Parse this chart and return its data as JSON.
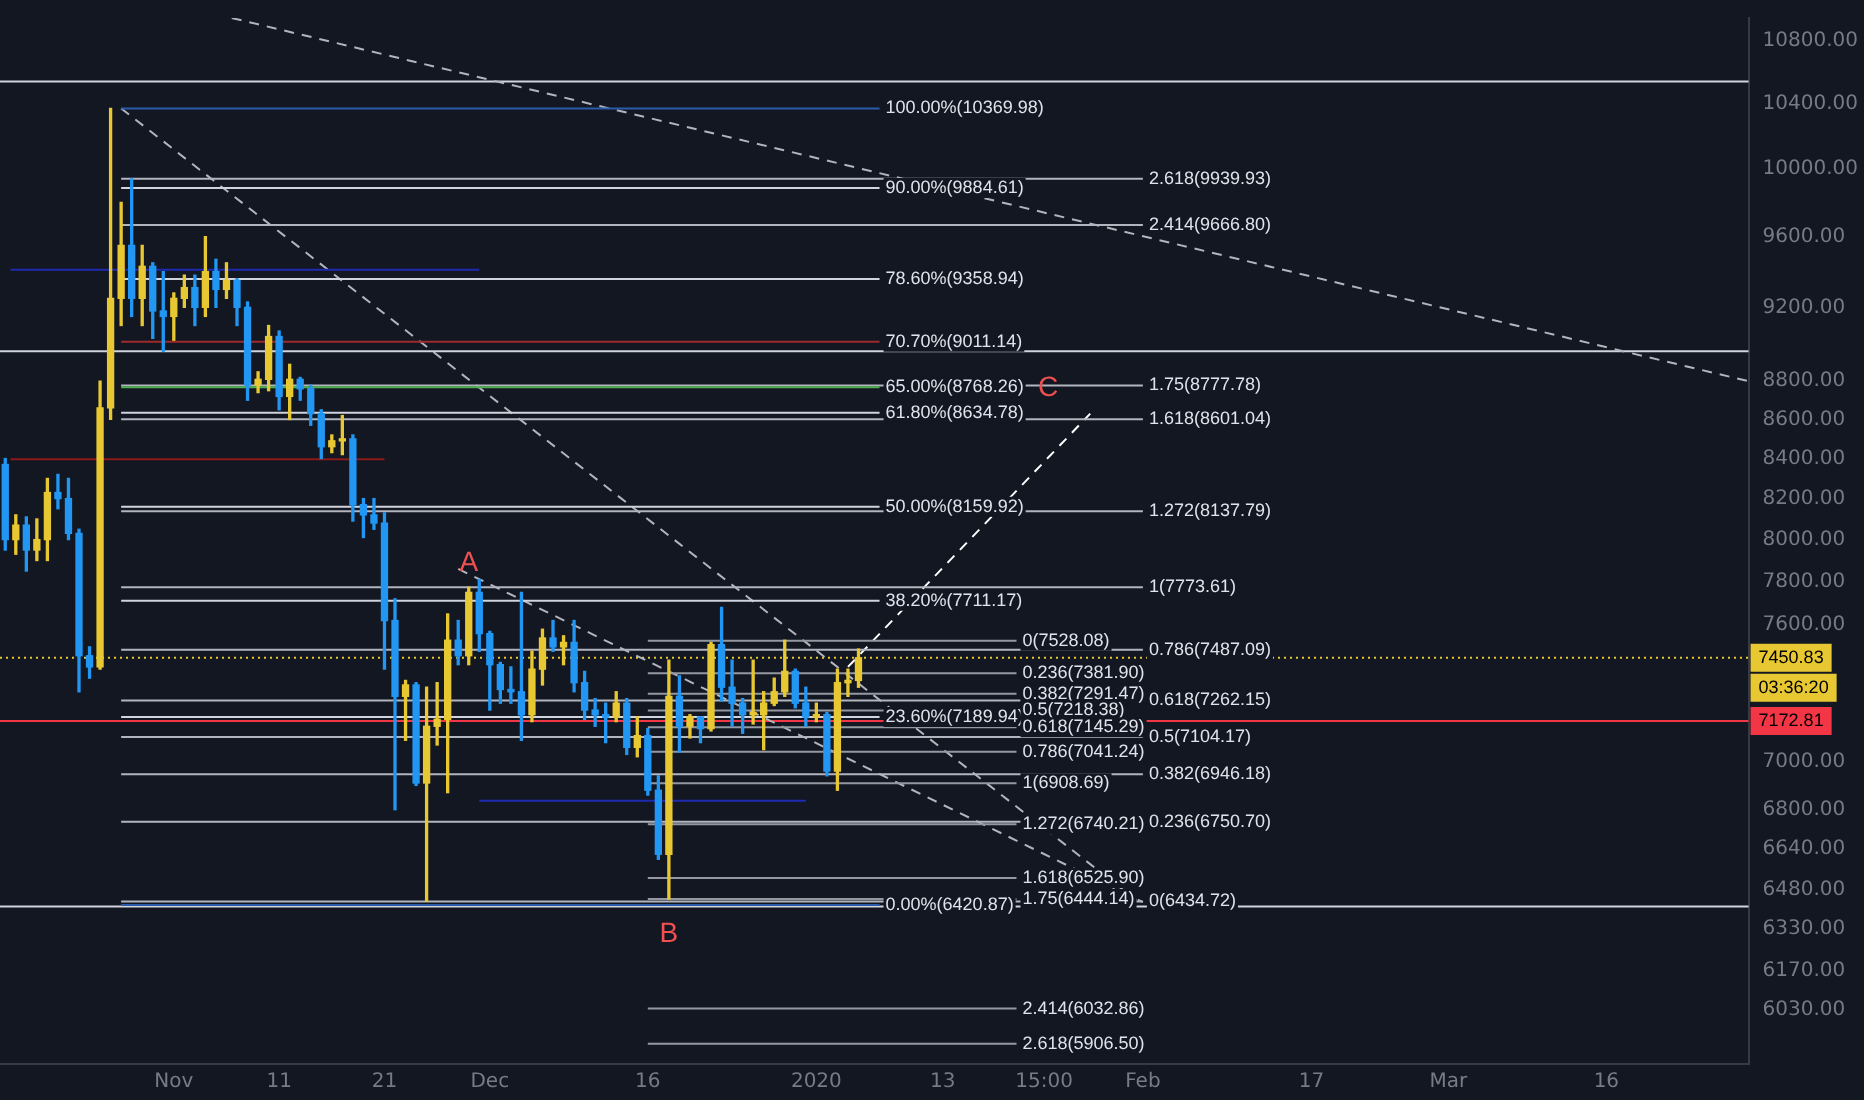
{
  "chart_data": {
    "type": "candlestick",
    "x": [
      "2019-10-16",
      "2019-10-17",
      "2019-10-18",
      "2019-10-19",
      "2019-10-20",
      "2019-10-21",
      "2019-10-22",
      "2019-10-23",
      "2019-10-24",
      "2019-10-25",
      "2019-10-26",
      "2019-10-27",
      "2019-10-28",
      "2019-10-29",
      "2019-10-30",
      "2019-10-31",
      "2019-11-01",
      "2019-11-02",
      "2019-11-03",
      "2019-11-04",
      "2019-11-05",
      "2019-11-06",
      "2019-11-07",
      "2019-11-08",
      "2019-11-09",
      "2019-11-10",
      "2019-11-11",
      "2019-11-12",
      "2019-11-13",
      "2019-11-14",
      "2019-11-15",
      "2019-11-16",
      "2019-11-17",
      "2019-11-18",
      "2019-11-19",
      "2019-11-20",
      "2019-11-21",
      "2019-11-22",
      "2019-11-23",
      "2019-11-24",
      "2019-11-25",
      "2019-11-26",
      "2019-11-27",
      "2019-11-28",
      "2019-11-29",
      "2019-11-30",
      "2019-12-01",
      "2019-12-02",
      "2019-12-03",
      "2019-12-04",
      "2019-12-05",
      "2019-12-06",
      "2019-12-07",
      "2019-12-08",
      "2019-12-09",
      "2019-12-10",
      "2019-12-11",
      "2019-12-12",
      "2019-12-13",
      "2019-12-14",
      "2019-12-15",
      "2019-12-16",
      "2019-12-17",
      "2019-12-18",
      "2019-12-19",
      "2019-12-20",
      "2019-12-21",
      "2019-12-22",
      "2019-12-23",
      "2019-12-24",
      "2019-12-25",
      "2019-12-26",
      "2019-12-27",
      "2019-12-28",
      "2019-12-29",
      "2019-12-30",
      "2019-12-31",
      "2020-01-01",
      "2020-01-02",
      "2020-01-03",
      "2020-01-04",
      "2020-01-05"
    ],
    "ohlc": [
      [
        8370,
        8400,
        7950,
        8000
      ],
      [
        8000,
        8120,
        7930,
        8070
      ],
      [
        8070,
        8110,
        7850,
        7950
      ],
      [
        7950,
        8100,
        7900,
        8000
      ],
      [
        8000,
        8300,
        7900,
        8230
      ],
      [
        8230,
        8320,
        8150,
        8200
      ],
      [
        8200,
        8300,
        8000,
        8030
      ],
      [
        8030,
        8050,
        7300,
        7460
      ],
      [
        7460,
        7500,
        7360,
        7410
      ],
      [
        7410,
        8800,
        7400,
        8660
      ],
      [
        8660,
        10370,
        8600,
        9250
      ],
      [
        9250,
        9800,
        9100,
        9550
      ],
      [
        9550,
        9940,
        9150,
        9250
      ],
      [
        9250,
        9550,
        9100,
        9430
      ],
      [
        9430,
        9450,
        9030,
        9180
      ],
      [
        9180,
        9400,
        8960,
        9150
      ],
      [
        9150,
        9280,
        9020,
        9250
      ],
      [
        9250,
        9380,
        9200,
        9310
      ],
      [
        9310,
        9380,
        9100,
        9200
      ],
      [
        9200,
        9600,
        9150,
        9400
      ],
      [
        9400,
        9470,
        9200,
        9300
      ],
      [
        9300,
        9450,
        9250,
        9350
      ],
      [
        9350,
        9360,
        9100,
        9200
      ],
      [
        9200,
        9230,
        8700,
        8780
      ],
      [
        8780,
        8850,
        8740,
        8810
      ],
      [
        8810,
        9100,
        8750,
        9040
      ],
      [
        9040,
        9070,
        8650,
        8720
      ],
      [
        8720,
        8890,
        8600,
        8810
      ],
      [
        8810,
        8820,
        8700,
        8760
      ],
      [
        8760,
        8780,
        8570,
        8630
      ],
      [
        8630,
        8650,
        8400,
        8460
      ],
      [
        8460,
        8520,
        8430,
        8490
      ],
      [
        8490,
        8620,
        8420,
        8500
      ],
      [
        8500,
        8520,
        8090,
        8170
      ],
      [
        8170,
        8200,
        8010,
        8120
      ],
      [
        8120,
        8200,
        8050,
        8080
      ],
      [
        8080,
        8130,
        7400,
        7620
      ],
      [
        7620,
        7720,
        6800,
        7280
      ],
      [
        7280,
        7350,
        7090,
        7330
      ],
      [
        7330,
        7340,
        6900,
        6910
      ],
      [
        6910,
        7320,
        6435,
        7150
      ],
      [
        7150,
        7340,
        7070,
        7180
      ],
      [
        7180,
        7650,
        6870,
        7530
      ],
      [
        7530,
        7620,
        7420,
        7460
      ],
      [
        7460,
        7774,
        7420,
        7750
      ],
      [
        7750,
        7810,
        7480,
        7560
      ],
      [
        7560,
        7570,
        7220,
        7420
      ],
      [
        7420,
        7430,
        7250,
        7310
      ],
      [
        7310,
        7410,
        7250,
        7300
      ],
      [
        7300,
        7750,
        7090,
        7200
      ],
      [
        7200,
        7480,
        7170,
        7400
      ],
      [
        7400,
        7580,
        7330,
        7540
      ],
      [
        7540,
        7620,
        7480,
        7500
      ],
      [
        7500,
        7550,
        7420,
        7520
      ],
      [
        7520,
        7620,
        7300,
        7340
      ],
      [
        7340,
        7390,
        7180,
        7220
      ],
      [
        7220,
        7270,
        7150,
        7200
      ],
      [
        7200,
        7250,
        7080,
        7190
      ],
      [
        7190,
        7300,
        7170,
        7250
      ],
      [
        7250,
        7270,
        7030,
        7060
      ],
      [
        7060,
        7190,
        7020,
        7110
      ],
      [
        7110,
        7140,
        6860,
        6880
      ],
      [
        6880,
        6940,
        6600,
        6620
      ],
      [
        6620,
        7440,
        6444,
        7280
      ],
      [
        7280,
        7370,
        7040,
        7150
      ],
      [
        7150,
        7200,
        7100,
        7190
      ],
      [
        7190,
        7190,
        7080,
        7140
      ],
      [
        7140,
        7520,
        7130,
        7510
      ],
      [
        7510,
        7680,
        7260,
        7320
      ],
      [
        7320,
        7440,
        7150,
        7250
      ],
      [
        7250,
        7270,
        7120,
        7200
      ],
      [
        7200,
        7440,
        7160,
        7200
      ],
      [
        7200,
        7300,
        7050,
        7250
      ],
      [
        7250,
        7360,
        7240,
        7300
      ],
      [
        7300,
        7530,
        7280,
        7390
      ],
      [
        7390,
        7400,
        7230,
        7250
      ],
      [
        7250,
        7320,
        7150,
        7190
      ],
      [
        7190,
        7250,
        7170,
        7200
      ],
      [
        7200,
        7210,
        6940,
        6960
      ],
      [
        6960,
        7400,
        6880,
        7340
      ],
      [
        7340,
        7400,
        7280,
        7350
      ],
      [
        7350,
        7490,
        7320,
        7451
      ]
    ],
    "colors": [
      "#2196f3",
      "#e8c832",
      "#2196f3",
      "#e8c832",
      "#e8c832",
      "#2196f3",
      "#2196f3",
      "#2196f3",
      "#2196f3",
      "#e8c832",
      "#e8c832",
      "#e8c832",
      "#2196f3",
      "#e8c832",
      "#2196f3",
      "#2196f3",
      "#e8c832",
      "#e8c832",
      "#2196f3",
      "#e8c832",
      "#2196f3",
      "#e8c832",
      "#2196f3",
      "#2196f3",
      "#e8c832",
      "#e8c832",
      "#2196f3",
      "#e8c832",
      "#2196f3",
      "#2196f3",
      "#2196f3",
      "#e8c832",
      "#e8c832",
      "#2196f3",
      "#2196f3",
      "#2196f3",
      "#2196f3",
      "#2196f3",
      "#e8c832",
      "#2196f3",
      "#e8c832",
      "#e8c832",
      "#e8c832",
      "#2196f3",
      "#e8c832",
      "#2196f3",
      "#2196f3",
      "#2196f3",
      "#2196f3",
      "#2196f3",
      "#e8c832",
      "#e8c832",
      "#2196f3",
      "#e8c832",
      "#2196f3",
      "#2196f3",
      "#2196f3",
      "#2196f3",
      "#e8c832",
      "#2196f3",
      "#e8c832",
      "#2196f3",
      "#2196f3",
      "#e8c832",
      "#2196f3",
      "#e8c832",
      "#2196f3",
      "#e8c832",
      "#2196f3",
      "#2196f3",
      "#2196f3",
      "#e8c832",
      "#e8c832",
      "#e8c832",
      "#e8c832",
      "#2196f3",
      "#2196f3",
      "#e8c832",
      "#2196f3",
      "#e8c832",
      "#e8c832",
      "#e8c832"
    ],
    "series": [
      {
        "type": "line",
        "x": [
          "2019-10-27",
          "2020-01-07"
        ],
        "values": [
          10369.98,
          10369.98
        ],
        "color": "#2a5caa"
      },
      {
        "type": "line",
        "x": [
          "2019-10-27",
          "2020-01-07"
        ],
        "values": [
          9884.61,
          9884.61
        ],
        "color": "#d1d4dc"
      },
      {
        "type": "line",
        "x": [
          "2019-10-27",
          "2020-01-07"
        ],
        "values": [
          9358.94,
          9358.94
        ],
        "color": "#d1d4dc"
      },
      {
        "type": "line",
        "x": [
          "2019-10-27",
          "2020-01-07"
        ],
        "values": [
          9011.14,
          9011.14
        ],
        "color": "#9c2b2b"
      },
      {
        "type": "line",
        "x": [
          "2019-10-27",
          "2020-01-07"
        ],
        "values": [
          8768.26,
          8768.26
        ],
        "color": "#4caf50"
      },
      {
        "type": "line",
        "x": [
          "2019-10-27",
          "2020-01-07"
        ],
        "values": [
          8634.78,
          8634.78
        ],
        "color": "#d1d4dc"
      },
      {
        "type": "line",
        "x": [
          "2019-10-27",
          "2020-01-07"
        ],
        "values": [
          8159.92,
          8159.92
        ],
        "color": "#d1d4dc"
      },
      {
        "type": "line",
        "x": [
          "2019-10-27",
          "2020-01-07"
        ],
        "values": [
          7711.17,
          7711.17
        ],
        "color": "#d1d4dc"
      },
      {
        "type": "line",
        "x": [
          "2019-10-27",
          "2020-01-07"
        ],
        "values": [
          7189.94,
          7189.94
        ],
        "color": "#d1d4dc"
      },
      {
        "type": "line",
        "x": [
          "2019-10-27",
          "2020-01-07"
        ],
        "values": [
          6420.87,
          6420.87
        ],
        "color": "#2a5caa"
      },
      {
        "type": "line",
        "x": [
          "2019-10-27",
          "2020-02-01"
        ],
        "values": [
          9939.93,
          9939.93
        ],
        "color": "#b2b5be"
      },
      {
        "type": "line",
        "x": [
          "2019-10-27",
          "2020-02-01"
        ],
        "values": [
          9666.8,
          9666.8
        ],
        "color": "#b2b5be"
      },
      {
        "type": "line",
        "x": [
          "2019-10-27",
          "2020-02-01"
        ],
        "values": [
          8777.78,
          8777.78
        ],
        "color": "#b2b5be"
      },
      {
        "type": "line",
        "x": [
          "2019-10-27",
          "2020-02-01"
        ],
        "values": [
          8601.04,
          8601.04
        ],
        "color": "#b2b5be"
      },
      {
        "type": "line",
        "x": [
          "2019-10-27",
          "2020-02-01"
        ],
        "values": [
          8137.79,
          8137.79
        ],
        "color": "#b2b5be"
      },
      {
        "type": "line",
        "x": [
          "2019-10-27",
          "2020-02-01"
        ],
        "values": [
          7773.61,
          7773.61
        ],
        "color": "#b2b5be"
      },
      {
        "type": "line",
        "x": [
          "2019-10-27",
          "2020-02-01"
        ],
        "values": [
          7487.09,
          7487.09
        ],
        "color": "#b2b5be"
      },
      {
        "type": "line",
        "x": [
          "2019-10-27",
          "2020-02-01"
        ],
        "values": [
          7262.15,
          7262.15
        ],
        "color": "#b2b5be"
      },
      {
        "type": "line",
        "x": [
          "2019-10-27",
          "2020-02-01"
        ],
        "values": [
          7104.17,
          7104.17
        ],
        "color": "#b2b5be"
      },
      {
        "type": "line",
        "x": [
          "2019-10-27",
          "2020-02-01"
        ],
        "values": [
          6946.18,
          6946.18
        ],
        "color": "#b2b5be"
      },
      {
        "type": "line",
        "x": [
          "2019-10-27",
          "2020-02-01"
        ],
        "values": [
          6750.7,
          6750.7
        ],
        "color": "#b2b5be"
      },
      {
        "type": "line",
        "x": [
          "2019-10-27",
          "2020-02-01"
        ],
        "values": [
          6434.72,
          6434.72
        ],
        "color": "#b2b5be"
      },
      {
        "type": "line",
        "x": [
          "2019-12-16",
          "2020-01-20"
        ],
        "values": [
          7528.08,
          7528.08
        ],
        "color": "#9598a1"
      },
      {
        "type": "line",
        "x": [
          "2019-12-16",
          "2020-01-20"
        ],
        "values": [
          7381.9,
          7381.9
        ],
        "color": "#9598a1"
      },
      {
        "type": "line",
        "x": [
          "2019-12-16",
          "2020-01-20"
        ],
        "values": [
          7291.47,
          7291.47
        ],
        "color": "#9598a1"
      },
      {
        "type": "line",
        "x": [
          "2019-12-16",
          "2020-01-20"
        ],
        "values": [
          7218.38,
          7218.38
        ],
        "color": "#9598a1"
      },
      {
        "type": "line",
        "x": [
          "2019-12-16",
          "2020-01-20"
        ],
        "values": [
          7145.29,
          7145.29
        ],
        "color": "#9598a1"
      },
      {
        "type": "line",
        "x": [
          "2019-12-16",
          "2020-01-20"
        ],
        "values": [
          7041.24,
          7041.24
        ],
        "color": "#9598a1"
      },
      {
        "type": "line",
        "x": [
          "2019-12-16",
          "2020-01-20"
        ],
        "values": [
          6908.69,
          6908.69
        ],
        "color": "#9598a1"
      },
      {
        "type": "line",
        "x": [
          "2019-12-16",
          "2020-01-20"
        ],
        "values": [
          6740.21,
          6740.21
        ],
        "color": "#9598a1"
      },
      {
        "type": "line",
        "x": [
          "2019-12-16",
          "2020-01-20"
        ],
        "values": [
          6525.9,
          6525.9
        ],
        "color": "#9598a1"
      },
      {
        "type": "line",
        "x": [
          "2019-12-16",
          "2020-01-20"
        ],
        "values": [
          6444.14,
          6444.14
        ],
        "color": "#9598a1"
      },
      {
        "type": "line",
        "x": [
          "2019-12-16",
          "2020-01-20"
        ],
        "values": [
          6032.86,
          6032.86
        ],
        "color": "#9598a1"
      },
      {
        "type": "line",
        "x": [
          "2019-12-16",
          "2020-01-20"
        ],
        "values": [
          5906.5,
          5906.5
        ],
        "color": "#9598a1"
      },
      {
        "type": "line",
        "x": [
          "2019-10-16T12:00",
          "2019-11-30"
        ],
        "values": [
          9411,
          9411
        ],
        "color": "#1e2bb0"
      },
      {
        "type": "line",
        "x": [
          "2019-10-16T12:00",
          "2019-11-21"
        ],
        "values": [
          8397,
          8397
        ],
        "color": "#8b1a1a"
      },
      {
        "type": "line",
        "x": [
          "2019-11-30",
          "2019-12-31"
        ],
        "values": [
          6837,
          6837
        ],
        "color": "#1e2bb0"
      },
      {
        "type": "line",
        "x": [
          "2019-11-06T12:00",
          "2020-03-29T12:00"
        ],
        "values": [
          10950,
          8800
        ],
        "color": "#b2b5be",
        "line_style": "dashed"
      },
      {
        "type": "line",
        "x": [
          "2019-10-27",
          "2020-02-01"
        ],
        "values": [
          10370,
          6420
        ],
        "color": "#b2b5be",
        "line_style": "dashed"
      },
      {
        "type": "line",
        "x": [
          "2019-11-28",
          "2020-02-01"
        ],
        "values": [
          7860,
          6432
        ],
        "color": "#b2b5be",
        "line_style": "dashed"
      },
      {
        "type": "line",
        "x": [
          "2020-01-04",
          "2020-01-27"
        ],
        "values": [
          7410,
          8630
        ],
        "color": "#ffffff",
        "line_style": "dashed"
      }
    ],
    "annotations": [
      {
        "text": "100.00%(10369.98)",
        "x": "2020-01-07",
        "y": 10369.98
      },
      {
        "text": "90.00%(9884.61)",
        "x": "2020-01-07",
        "y": 9884.61
      },
      {
        "text": "78.60%(9358.94)",
        "x": "2020-01-07",
        "y": 9358.94
      },
      {
        "text": "70.70%(9011.14)",
        "x": "2020-01-07",
        "y": 9011.14
      },
      {
        "text": "65.00%(8768.26)",
        "x": "2020-01-07",
        "y": 8768.26
      },
      {
        "text": "61.80%(8634.78)",
        "x": "2020-01-07",
        "y": 8634.78
      },
      {
        "text": "50.00%(8159.92)",
        "x": "2020-01-07",
        "y": 8159.92
      },
      {
        "text": "38.20%(7711.17)",
        "x": "2020-01-07",
        "y": 7711.17
      },
      {
        "text": "23.60%(7189.94)",
        "x": "2020-01-07",
        "y": 7189.94
      },
      {
        "text": "0.00%(6420.87)",
        "x": "2020-01-07",
        "y": 6420.87
      },
      {
        "text": "2.618(9939.93)",
        "x": "2020-02-01",
        "y": 9939.93
      },
      {
        "text": "2.414(9666.80)",
        "x": "2020-02-01",
        "y": 9666.8
      },
      {
        "text": "1.75(8777.78)",
        "x": "2020-02-01",
        "y": 8777.78
      },
      {
        "text": "1.618(8601.04)",
        "x": "2020-02-01",
        "y": 8601.04
      },
      {
        "text": "1.272(8137.79)",
        "x": "2020-02-01",
        "y": 8137.79
      },
      {
        "text": "1(7773.61)",
        "x": "2020-02-01",
        "y": 7773.61
      },
      {
        "text": "0.786(7487.09)",
        "x": "2020-02-01",
        "y": 7487.09
      },
      {
        "text": "0.618(7262.15)",
        "x": "2020-02-01",
        "y": 7262.15
      },
      {
        "text": "0.5(7104.17)",
        "x": "2020-02-01",
        "y": 7104.17
      },
      {
        "text": "0.382(6946.18)",
        "x": "2020-02-01",
        "y": 6946.18
      },
      {
        "text": "0.236(6750.70)",
        "x": "2020-02-01",
        "y": 6750.7
      },
      {
        "text": "0(6434.72)",
        "x": "2020-02-01",
        "y": 6434.72
      },
      {
        "text": "0(7528.08)",
        "x": "2020-01-20",
        "y": 7528.08
      },
      {
        "text": "0.236(7381.90)",
        "x": "2020-01-20",
        "y": 7381.9
      },
      {
        "text": "0.382(7291.47)",
        "x": "2020-01-20",
        "y": 7291.47
      },
      {
        "text": "0.5(7218.38)",
        "x": "2020-01-20",
        "y": 7218.38
      },
      {
        "text": "0.618(7145.29)",
        "x": "2020-01-20",
        "y": 7145.29
      },
      {
        "text": "0.786(7041.24)",
        "x": "2020-01-20",
        "y": 7041.24
      },
      {
        "text": "1(6908.69)",
        "x": "2020-01-20",
        "y": 6908.69
      },
      {
        "text": "1.272(6740.21)",
        "x": "2020-01-20",
        "y": 6740.21
      },
      {
        "text": "1.618(6525.90)",
        "x": "2020-01-20",
        "y": 6525.9
      },
      {
        "text": "1.75(6444.14)",
        "x": "2020-01-20",
        "y": 6444.14
      },
      {
        "text": "2.414(6032.86)",
        "x": "2020-01-20",
        "y": 6032.86
      },
      {
        "text": "2.618(5906.50)",
        "x": "2020-01-20",
        "y": 5906.5
      },
      {
        "text": "A",
        "x": "2019-11-29",
        "y": 7774
      },
      {
        "text": "B",
        "x": "2019-12-18",
        "y": 6415
      },
      {
        "text": "C",
        "x": "2020-01-23",
        "y": 8634.78
      },
      "03:36:20"
    ],
    "ref_lines": [
      {
        "axis": "y",
        "value": 7450.83,
        "label": "7450.83",
        "color": "#e8c832",
        "line_style": "dotted"
      },
      {
        "axis": "y",
        "value": 7172.81,
        "label": "7172.81",
        "color": "#f23645",
        "line_style": "solid"
      },
      {
        "axis": "y",
        "value": 10540,
        "color": "#d1d4dc",
        "line_style": "solid"
      },
      {
        "axis": "y",
        "value": 8960,
        "color": "#d1d4dc",
        "line_style": "solid"
      },
      {
        "axis": "y",
        "value": 6415,
        "color": "#d1d4dc",
        "line_style": "solid"
      }
    ],
    "xlim": [
      "2019-10-15T12:00",
      "2020-03-29T12:00"
    ],
    "xticks": [
      {
        "value": "2019-11-01",
        "label": "Nov"
      },
      {
        "value": "2019-11-11",
        "label": "11"
      },
      {
        "value": "2019-11-21",
        "label": "21"
      },
      {
        "value": "2019-12-01",
        "label": "Dec"
      },
      {
        "value": "2019-12-16",
        "label": "16"
      },
      {
        "value": "2020-01-01",
        "label": "2020"
      },
      {
        "value": "2020-01-13",
        "label": "13"
      },
      {
        "value": "2020-01-22T15:00",
        "label": "15:00"
      },
      {
        "value": "2020-02-01",
        "label": "Feb"
      },
      {
        "value": "2020-02-17",
        "label": "17"
      },
      {
        "value": "2020-03-01",
        "label": "Mar"
      },
      {
        "value": "2020-03-16",
        "label": "16"
      }
    ],
    "ylim": [
      5835,
      10950
    ],
    "yticks": [
      {
        "value": 6030,
        "label": "6030.00"
      },
      {
        "value": 6170,
        "label": "6170.00"
      },
      {
        "value": 6330,
        "label": "6330.00"
      },
      {
        "value": 6480,
        "label": "6480.00"
      },
      {
        "value": 6640,
        "label": "6640.00"
      },
      {
        "value": 6800,
        "label": "6800.00"
      },
      {
        "value": 7000,
        "label": "7000.00"
      },
      {
        "value": 7600,
        "label": "7600.00"
      },
      {
        "value": 7800,
        "label": "7800.00"
      },
      {
        "value": 8000,
        "label": "8000.00"
      },
      {
        "value": 8200,
        "label": "8200.00"
      },
      {
        "value": 8400,
        "label": "8400.00"
      },
      {
        "value": 8600,
        "label": "8600.00"
      },
      {
        "value": 8800,
        "label": "8800.00"
      },
      {
        "value": 9200,
        "label": "9200.00"
      },
      {
        "value": 9600,
        "label": "9600.00"
      },
      {
        "value": 10000,
        "label": "10000.00"
      },
      {
        "value": 10400,
        "label": "10400.00"
      },
      {
        "value": 10800,
        "label": "10800.00"
      }
    ],
    "log": true,
    "grid": false,
    "legend": false,
    "marker": "none"
  }
}
